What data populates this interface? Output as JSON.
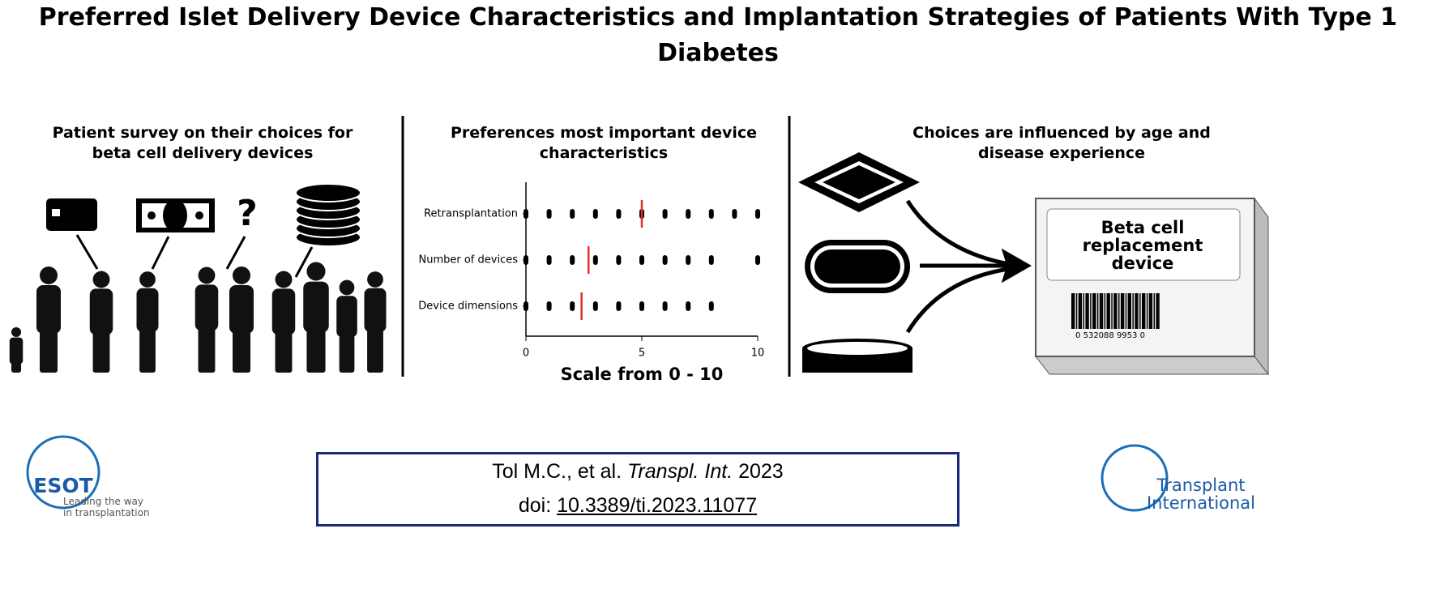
{
  "header": {
    "title": "Preferred Islet Delivery Device Characteristics and Implantation Strategies of Patients With Type 1 Diabetes"
  },
  "panels": [
    {
      "heading": "Patient survey on their choices for beta cell delivery devices",
      "symbol": "?"
    },
    {
      "heading": "Preferences most important device characteristics",
      "chart": {
        "type": "dot",
        "categories": [
          "Retransplantation",
          "Number of devices",
          "Device dimensions"
        ],
        "rows": [
          {
            "x": [
              0,
              1,
              2,
              3,
              4,
              5,
              6,
              7,
              8,
              9,
              10
            ],
            "median": 5
          },
          {
            "x": [
              0,
              1,
              2,
              3,
              4,
              5,
              6,
              7,
              8,
              10
            ],
            "median": 2.7
          },
          {
            "x": [
              0,
              1,
              2,
              3,
              4,
              5,
              6,
              7,
              8
            ],
            "median": 2.4
          }
        ],
        "xlim": [
          0,
          10
        ],
        "xticks": [
          0,
          5,
          10
        ],
        "xlabel": "Scale from 0 - 10",
        "dot_color": "#000000",
        "median_color": "#e0302a"
      }
    },
    {
      "heading": "Choices are influenced by age and disease experience",
      "device_label": "Beta cell replacement device",
      "barcode": "0 532088 9953 0"
    }
  ],
  "citation": {
    "authors": "Tol M.C., et al.",
    "journal": "Transpl. Int.",
    "year": "2023",
    "doi_prefix": "doi:",
    "doi": "10.3389/ti.2023.11077"
  },
  "logos": {
    "esot": "ESOT",
    "esot_tagline": "Leading the way in transplantation",
    "journal": "Transplant International"
  }
}
